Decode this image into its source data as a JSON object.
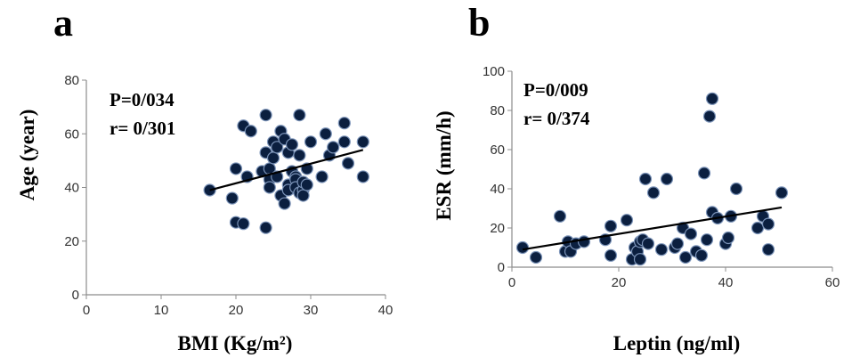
{
  "chart_data": [
    {
      "type": "scatter",
      "panel_letter": "a",
      "xlabel": "BMI (Kg/m²)",
      "ylabel": "Age (year)",
      "xlim": [
        0,
        40
      ],
      "ylim": [
        0,
        80
      ],
      "xticks": [
        "0",
        "10",
        "20",
        "30",
        "40"
      ],
      "yticks": [
        "0",
        "20",
        "40",
        "60",
        "80"
      ],
      "annotation": [
        "P=0/034",
        "r= 0/301"
      ],
      "grid": false,
      "trendline": {
        "x": [
          16.5,
          37
        ],
        "y": [
          39,
          54
        ]
      },
      "points": [
        {
          "x": 16.5,
          "y": 39
        },
        {
          "x": 19.5,
          "y": 36
        },
        {
          "x": 20,
          "y": 47
        },
        {
          "x": 20,
          "y": 27
        },
        {
          "x": 21,
          "y": 26.5
        },
        {
          "x": 21,
          "y": 63
        },
        {
          "x": 21.5,
          "y": 44
        },
        {
          "x": 22,
          "y": 61
        },
        {
          "x": 23.5,
          "y": 46
        },
        {
          "x": 24,
          "y": 67
        },
        {
          "x": 24,
          "y": 25
        },
        {
          "x": 24,
          "y": 53
        },
        {
          "x": 24.5,
          "y": 47
        },
        {
          "x": 24.5,
          "y": 43
        },
        {
          "x": 24.5,
          "y": 40
        },
        {
          "x": 25,
          "y": 51
        },
        {
          "x": 25,
          "y": 57
        },
        {
          "x": 25.5,
          "y": 55
        },
        {
          "x": 25.5,
          "y": 44
        },
        {
          "x": 26,
          "y": 61
        },
        {
          "x": 26,
          "y": 37
        },
        {
          "x": 26.5,
          "y": 34
        },
        {
          "x": 26.5,
          "y": 58
        },
        {
          "x": 27,
          "y": 53
        },
        {
          "x": 27,
          "y": 41
        },
        {
          "x": 27,
          "y": 39
        },
        {
          "x": 27.5,
          "y": 46
        },
        {
          "x": 27.5,
          "y": 56
        },
        {
          "x": 28,
          "y": 44
        },
        {
          "x": 28,
          "y": 43
        },
        {
          "x": 28,
          "y": 40
        },
        {
          "x": 28.5,
          "y": 52
        },
        {
          "x": 28.5,
          "y": 38
        },
        {
          "x": 28.5,
          "y": 67
        },
        {
          "x": 29,
          "y": 39
        },
        {
          "x": 29,
          "y": 42
        },
        {
          "x": 29,
          "y": 37
        },
        {
          "x": 29.5,
          "y": 41
        },
        {
          "x": 29.5,
          "y": 47
        },
        {
          "x": 30,
          "y": 57
        },
        {
          "x": 31.5,
          "y": 44
        },
        {
          "x": 32,
          "y": 60
        },
        {
          "x": 32.5,
          "y": 52
        },
        {
          "x": 33,
          "y": 55
        },
        {
          "x": 34.5,
          "y": 64
        },
        {
          "x": 34.5,
          "y": 57
        },
        {
          "x": 35,
          "y": 49
        },
        {
          "x": 37,
          "y": 57
        },
        {
          "x": 37,
          "y": 44
        }
      ]
    },
    {
      "type": "scatter",
      "panel_letter": "b",
      "xlabel": "Leptin (ng/ml)",
      "ylabel": "ESR (mm/h)",
      "xlim": [
        0,
        60
      ],
      "ylim": [
        0,
        100
      ],
      "xticks": [
        "0",
        "20",
        "40",
        "60"
      ],
      "yticks": [
        "0",
        "20",
        "40",
        "60",
        "80",
        "100"
      ],
      "annotation": [
        "P=0/009",
        "r= 0/374"
      ],
      "grid": false,
      "trendline": {
        "x": [
          2,
          50.5
        ],
        "y": [
          9,
          30.5
        ]
      },
      "points": [
        {
          "x": 2,
          "y": 10
        },
        {
          "x": 4.5,
          "y": 5
        },
        {
          "x": 9,
          "y": 26
        },
        {
          "x": 10,
          "y": 8
        },
        {
          "x": 10.5,
          "y": 13
        },
        {
          "x": 11,
          "y": 8
        },
        {
          "x": 12,
          "y": 12
        },
        {
          "x": 13.5,
          "y": 13
        },
        {
          "x": 17.5,
          "y": 14
        },
        {
          "x": 18.5,
          "y": 21
        },
        {
          "x": 18.5,
          "y": 6
        },
        {
          "x": 21.5,
          "y": 24
        },
        {
          "x": 22.5,
          "y": 4
        },
        {
          "x": 23,
          "y": 10
        },
        {
          "x": 23.5,
          "y": 8
        },
        {
          "x": 24,
          "y": 4
        },
        {
          "x": 24,
          "y": 13
        },
        {
          "x": 24.5,
          "y": 14
        },
        {
          "x": 25,
          "y": 45
        },
        {
          "x": 25.5,
          "y": 12
        },
        {
          "x": 26.5,
          "y": 38
        },
        {
          "x": 28,
          "y": 9
        },
        {
          "x": 29,
          "y": 45
        },
        {
          "x": 30.5,
          "y": 10
        },
        {
          "x": 31,
          "y": 12
        },
        {
          "x": 32,
          "y": 20
        },
        {
          "x": 32.5,
          "y": 5
        },
        {
          "x": 33.5,
          "y": 17
        },
        {
          "x": 34.5,
          "y": 8
        },
        {
          "x": 35.5,
          "y": 6
        },
        {
          "x": 36,
          "y": 48
        },
        {
          "x": 36.5,
          "y": 14
        },
        {
          "x": 37,
          "y": 77
        },
        {
          "x": 37.5,
          "y": 86
        },
        {
          "x": 37.5,
          "y": 28
        },
        {
          "x": 38.5,
          "y": 25
        },
        {
          "x": 40,
          "y": 12
        },
        {
          "x": 40.5,
          "y": 15
        },
        {
          "x": 41,
          "y": 26
        },
        {
          "x": 42,
          "y": 40
        },
        {
          "x": 46,
          "y": 20
        },
        {
          "x": 47,
          "y": 26
        },
        {
          "x": 48,
          "y": 9
        },
        {
          "x": 48,
          "y": 22
        },
        {
          "x": 50.5,
          "y": 38
        }
      ]
    }
  ]
}
